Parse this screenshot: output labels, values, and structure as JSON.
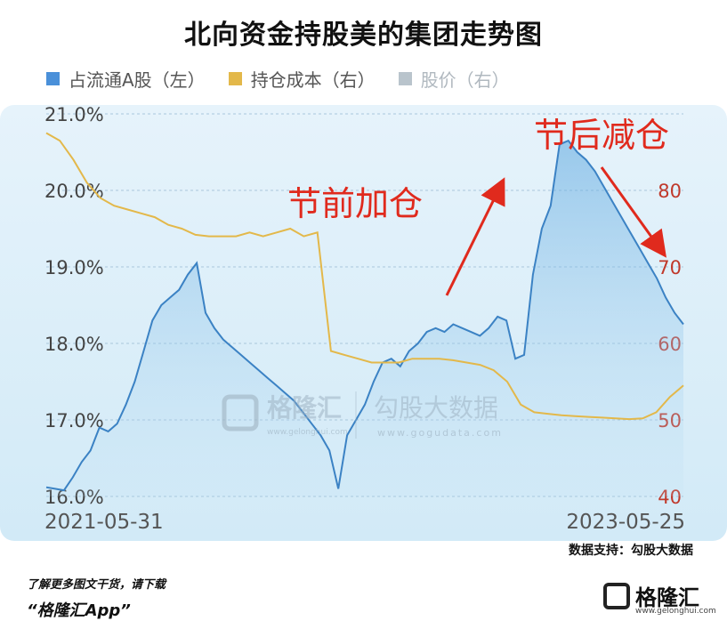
{
  "title": "北向资金持股美的集团走势图",
  "legend": [
    {
      "label": "占流通A股（左）",
      "color": "#4a90d9"
    },
    {
      "label": "持仓成本（右）",
      "color": "#e3b84a"
    },
    {
      "label": "股价（右）",
      "color": "#b9c4cc"
    }
  ],
  "chart_data": {
    "type": "line",
    "x_start": "2021-05-31",
    "x_end": "2023-05-25",
    "left_axis": {
      "ticks": [
        "16.0%",
        "17.0%",
        "18.0%",
        "19.0%",
        "20.0%",
        "21.0%"
      ],
      "ylim": [
        16.0,
        21.0
      ]
    },
    "right_axis": {
      "ticks": [
        "40",
        "50",
        "60",
        "70",
        "80"
      ],
      "ylim": [
        40,
        90
      ]
    },
    "series": [
      {
        "name": "占流通A股（左）",
        "axis": "left",
        "color": "#3b82c4",
        "values": [
          16.12,
          16.1,
          16.08,
          16.25,
          16.45,
          16.6,
          16.9,
          16.85,
          16.95,
          17.2,
          17.5,
          17.9,
          18.3,
          18.5,
          18.6,
          18.7,
          18.9,
          19.05,
          18.4,
          18.2,
          18.05,
          17.95,
          17.85,
          17.75,
          17.65,
          17.55,
          17.45,
          17.35,
          17.25,
          17.1,
          16.95,
          16.8,
          16.6,
          16.1,
          16.8,
          17.0,
          17.2,
          17.5,
          17.75,
          17.8,
          17.7,
          17.9,
          18.0,
          18.15,
          18.2,
          18.15,
          18.25,
          18.2,
          18.15,
          18.1,
          18.2,
          18.35,
          18.3,
          17.8,
          17.85,
          18.9,
          19.5,
          19.8,
          20.6,
          20.65,
          20.5,
          20.4,
          20.25,
          20.05,
          19.85,
          19.65,
          19.45,
          19.25,
          19.05,
          18.85,
          18.6,
          18.4,
          18.25
        ]
      },
      {
        "name": "持仓成本（右）",
        "axis": "right",
        "color": "#e3b84a",
        "values": [
          87.5,
          86.5,
          84,
          81,
          79,
          78,
          77.5,
          77,
          76.5,
          75.5,
          75,
          74.2,
          74,
          74,
          74,
          74.5,
          74,
          74.5,
          75,
          74,
          74.5,
          59,
          58.5,
          58,
          57.5,
          57.5,
          57.5,
          58,
          58,
          58,
          57.8,
          57.5,
          57.2,
          56.5,
          55,
          52,
          51,
          50.8,
          50.6,
          50.5,
          50.4,
          50.3,
          50.2,
          50.1,
          50.2,
          51,
          53,
          54.5
        ]
      }
    ],
    "annotations": [
      "节前加仓",
      "节后减仓"
    ]
  },
  "watermark": {
    "brand": "格隆汇",
    "brand_sub": "www.gelonghui.com",
    "partner": "勾股大数据",
    "partner_sub": "www.gogudata.com"
  },
  "source": "数据支持：勾股大数据",
  "footer": {
    "line1": "了解更多图文干货，请下载",
    "line2": "“格隆汇App”"
  },
  "logo": {
    "name": "格隆汇",
    "url": "www.gelonghui.com"
  }
}
